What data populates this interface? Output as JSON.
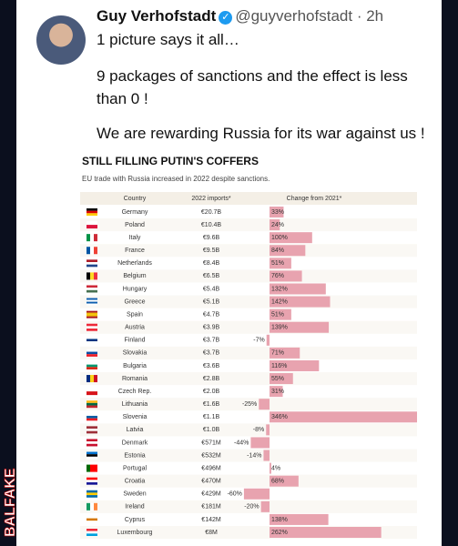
{
  "tweet": {
    "name": "Guy Verhofstadt",
    "handle": "@guyverhofstadt",
    "time": "2h",
    "lines": [
      "1 picture says it all…",
      "9 packages of sanctions and the effect is less than 0 !",
      "We are rewarding Russia for its war against us !"
    ]
  },
  "watermark": "BALFAKE",
  "table": {
    "title": "STILL FILLING PUTIN'S COFFERS",
    "subtitle": "EU trade with Russia increased in 2022 despite sanctions.",
    "columns": [
      "Country",
      "2022 imports*",
      "Change from 2021*"
    ],
    "countries": [
      "Germany",
      "Poland",
      "Italy",
      "France",
      "Netherlands",
      "Belgium",
      "Hungary",
      "Greece",
      "Spain",
      "Austria",
      "Finland",
      "Slovakia",
      "Bulgaria",
      "Romania",
      "Czech Rep.",
      "Lithuania",
      "Slovenia",
      "Latvia",
      "Denmark",
      "Estonia",
      "Portugal",
      "Croatia",
      "Sweden",
      "Ireland",
      "Cyprus",
      "Luxembourg"
    ],
    "imports": [
      "€20.7B",
      "€10.4B",
      "€9.6B",
      "€9.5B",
      "€8.4B",
      "€6.5B",
      "€5.4B",
      "€5.1B",
      "€4.7B",
      "€3.9B",
      "€3.7B",
      "€3.7B",
      "€3.6B",
      "€2.8B",
      "€2.0B",
      "€1.6B",
      "€1.1B",
      "€1.0B",
      "€571M",
      "€532M",
      "€496M",
      "€470M",
      "€429M",
      "€181M",
      "€142M",
      "€8M"
    ],
    "changes": [
      33,
      24,
      100,
      84,
      51,
      76,
      132,
      142,
      51,
      139,
      -7,
      71,
      116,
      55,
      31,
      -25,
      346,
      -8,
      -44,
      -14,
      4,
      68,
      -60,
      -20,
      138,
      262
    ],
    "change_labels": [
      "33%",
      "24%",
      "100%",
      "84%",
      "51%",
      "76%",
      "132%",
      "142%",
      "51%",
      "139%",
      "-7%",
      "71%",
      "116%",
      "55%",
      "31%",
      "-25%",
      "346%",
      "-8%",
      "-44%",
      "-14%",
      "4%",
      "68%",
      "-60%",
      "-20%",
      "138%",
      "262%"
    ],
    "bar_color": "#e8a3af"
  }
}
